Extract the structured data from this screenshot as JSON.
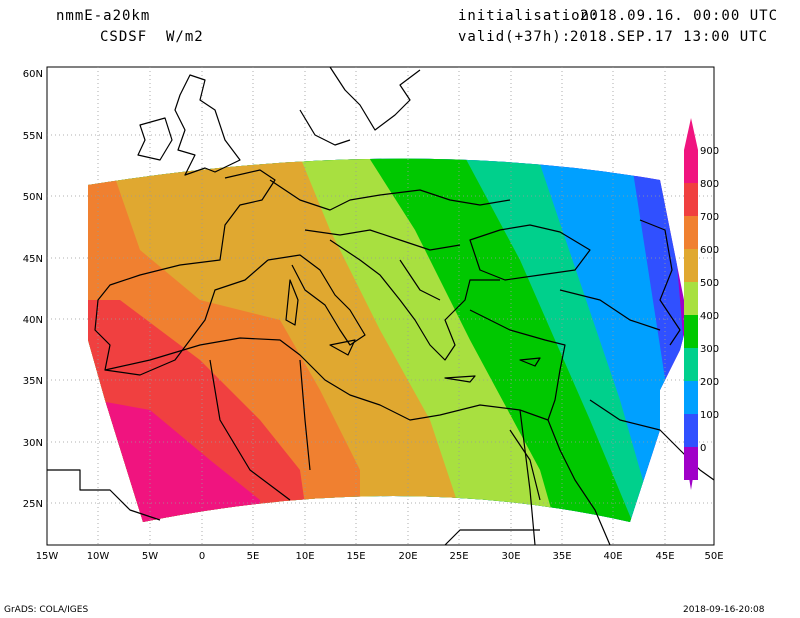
{
  "header": {
    "model": "nmmE-a20km",
    "field": "CSDSF  W/m2",
    "init_label": "initialisation:",
    "init_value": "2018.09.16. 00:00 UTC",
    "valid_label": "valid(+37h):",
    "valid_value": "2018.SEP.17 13:00 UTC"
  },
  "footer": {
    "left": "GrADS: COLA/IGES",
    "right": "2018-09-16-20:08"
  },
  "map": {
    "lon_ticks": [
      "15W",
      "10W",
      "5W",
      "0",
      "5E",
      "10E",
      "15E",
      "20E",
      "25E",
      "30E",
      "35E",
      "40E",
      "45E",
      "50E"
    ],
    "lat_ticks": [
      "60N",
      "55N",
      "50N",
      "45N",
      "40N",
      "35N",
      "30N",
      "25N"
    ]
  },
  "legend": {
    "levels": [
      "900",
      "800",
      "700",
      "600",
      "500",
      "400",
      "300",
      "200",
      "100",
      "0"
    ],
    "colors": [
      "#f0147f",
      "#f04040",
      "#f08030",
      "#e0a830",
      "#a8e040",
      "#00c800",
      "#00d08c",
      "#00a0ff",
      "#3050ff",
      "#a000c8"
    ]
  },
  "colors": {
    "magenta": "#f0147f",
    "red": "#f04040",
    "orange": "#f08030",
    "gold": "#e0a830",
    "lime": "#a8e040",
    "green": "#00c800",
    "teal": "#00d08c",
    "sky": "#00a0ff",
    "blue": "#3050ff",
    "purple": "#a000c8"
  }
}
